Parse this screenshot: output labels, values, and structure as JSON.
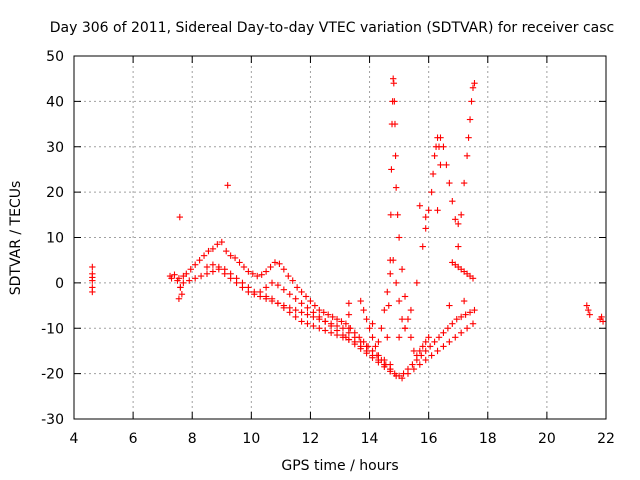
{
  "colors": {
    "series": "#ff0000",
    "grid": "#a0a0a0",
    "axis": "#000000",
    "background": "#ffffff"
  },
  "chart_data": {
    "type": "scatter",
    "title": "Day 306 of 2011, Sidereal Day-to-day VTEC variation (SDTVAR) for receiver casc",
    "xlabel": "GPS time / hours",
    "ylabel": "SDTVAR / TECUs",
    "xlim": [
      4,
      22
    ],
    "ylim": [
      -30,
      50
    ],
    "xticks": [
      4,
      6,
      8,
      10,
      12,
      14,
      16,
      18,
      20,
      22
    ],
    "yticks": [
      -30,
      -20,
      -10,
      0,
      10,
      20,
      30,
      40,
      50
    ],
    "xtick_labels": [
      "4",
      "6",
      "8",
      "10",
      "12",
      "14",
      "16",
      "18",
      "20",
      "22"
    ],
    "ytick_labels": [
      "-30",
      "-20",
      "-10",
      "0",
      "10",
      "20",
      "30",
      "40",
      "50"
    ],
    "grid": true,
    "marker": "+",
    "series": [
      {
        "name": "SDTVAR",
        "color": "#ff0000",
        "x": [
          4.62,
          4.62,
          4.62,
          4.62,
          4.62,
          4.62,
          7.25,
          7.4,
          7.55,
          7.6,
          7.65,
          7.7,
          7.8,
          7.95,
          8.1,
          8.25,
          8.4,
          8.55,
          8.7,
          8.85,
          9.0,
          9.15,
          9.3,
          9.45,
          9.6,
          9.75,
          9.9,
          10.05,
          10.2,
          10.35,
          10.5,
          10.65,
          10.8,
          10.95,
          11.1,
          11.25,
          11.4,
          11.55,
          11.7,
          11.85,
          12.0,
          12.15,
          12.3,
          12.45,
          12.6,
          12.75,
          12.9,
          13.05,
          13.2,
          13.35,
          13.5,
          13.65,
          13.8,
          13.95,
          14.1,
          14.25,
          14.4,
          14.55,
          14.7,
          14.85,
          15.0,
          15.15,
          15.3,
          15.45,
          15.6,
          15.75,
          15.9,
          16.05,
          16.2,
          16.35,
          16.5,
          16.65,
          16.8,
          16.95,
          17.1,
          17.25,
          17.4,
          17.55,
          7.3,
          7.5,
          7.7,
          7.9,
          8.1,
          8.3,
          8.5,
          8.7,
          8.9,
          9.1,
          9.3,
          9.5,
          9.7,
          9.9,
          10.1,
          10.3,
          10.5,
          10.7,
          10.9,
          11.1,
          11.3,
          11.5,
          11.7,
          11.9,
          12.1,
          12.3,
          12.5,
          12.7,
          12.9,
          13.1,
          13.3,
          13.5,
          13.7,
          13.9,
          14.1,
          14.3,
          14.5,
          14.7,
          14.9,
          15.1,
          15.3,
          15.5,
          15.7,
          15.9,
          16.1,
          16.3,
          16.5,
          16.7,
          16.9,
          17.1,
          17.3,
          17.5,
          8.5,
          8.7,
          8.9,
          9.1,
          9.3,
          9.5,
          9.7,
          9.9,
          10.1,
          10.3,
          10.5,
          10.7,
          10.9,
          11.1,
          11.3,
          11.5,
          11.7,
          11.9,
          12.1,
          12.3,
          12.5,
          12.7,
          12.9,
          13.1,
          13.3,
          13.5,
          13.7,
          13.9,
          14.1,
          14.3,
          14.5,
          14.7,
          10.5,
          10.7,
          10.9,
          11.1,
          11.3,
          11.5,
          11.7,
          11.9,
          12.1,
          12.3,
          12.5,
          12.7,
          12.9,
          13.1,
          13.3,
          13.5,
          13.7,
          13.9,
          14.1,
          14.3,
          14.5,
          14.7,
          14.6,
          14.65,
          14.7,
          14.72,
          14.74,
          14.76,
          14.78,
          14.8,
          14.82,
          14.84,
          14.86,
          14.88,
          14.9,
          14.95,
          15.0,
          15.1,
          15.2,
          15.3,
          15.4,
          15.5,
          15.6,
          15.7,
          15.8,
          15.9,
          16.0,
          13.7,
          13.8,
          13.9,
          14.0,
          14.1,
          14.2,
          14.3,
          14.4,
          14.5,
          14.6,
          14.7,
          14.8,
          14.9,
          15.0,
          15.1,
          15.2,
          15.0,
          15.2,
          15.4,
          15.6,
          15.8,
          15.9,
          16.0,
          16.1,
          16.15,
          16.2,
          16.25,
          16.3,
          16.35,
          16.4,
          16.4,
          16.5,
          16.6,
          16.7,
          16.8,
          16.9,
          17.0,
          17.0,
          17.1,
          17.2,
          17.3,
          17.35,
          17.4,
          17.45,
          17.5,
          17.55,
          16.8,
          16.9,
          17.0,
          17.1,
          17.2,
          17.3,
          17.4,
          17.5,
          13.3,
          13.3,
          13.3,
          13.2,
          14.1,
          15.7,
          16.3,
          16.7,
          17.2,
          15.9,
          9.2,
          7.58,
          7.6,
          7.55,
          21.35,
          21.4,
          21.45,
          21.8,
          21.85,
          21.9
        ],
        "y": [
          3.5,
          2.0,
          0.5,
          -1.0,
          -2.0,
          1.2,
          1.5,
          1.8,
          1.0,
          -1.0,
          -2.5,
          1.5,
          2.0,
          3.0,
          4.0,
          5.0,
          6.0,
          7.0,
          7.5,
          8.5,
          9.0,
          7.0,
          6.0,
          5.5,
          4.5,
          3.5,
          2.5,
          2.0,
          1.5,
          1.8,
          2.5,
          3.5,
          4.5,
          4.2,
          3.0,
          1.5,
          0.5,
          -1.0,
          -2.0,
          -3.0,
          -4.0,
          -5.0,
          -6.0,
          -6.5,
          -7.0,
          -7.5,
          -8.0,
          -8.5,
          -9.0,
          -10.0,
          -11.0,
          -12.0,
          -13.0,
          -14.0,
          -15.0,
          -16.0,
          -17.0,
          -18.0,
          -19.0,
          -20.0,
          -20.5,
          -20.0,
          -19.0,
          -18.0,
          -17.0,
          -16.0,
          -15.0,
          -14.0,
          -13.0,
          -12.0,
          -11.0,
          -10.0,
          -9.0,
          -8.0,
          -7.5,
          -7.0,
          -6.5,
          -6.0,
          1.0,
          0.5,
          0.0,
          0.5,
          1.0,
          1.5,
          2.0,
          2.5,
          3.0,
          2.0,
          1.0,
          0.0,
          -1.0,
          -2.0,
          -2.5,
          -2.0,
          -1.0,
          0.0,
          -0.5,
          -1.5,
          -2.5,
          -3.5,
          -4.5,
          -5.5,
          -6.5,
          -7.5,
          -8.5,
          -9.5,
          -10.5,
          -11.5,
          -12.5,
          -13.5,
          -14.5,
          -15.5,
          -16.5,
          -17.5,
          -18.5,
          -19.5,
          -20.5,
          -21.0,
          -20.0,
          -19.0,
          -18.0,
          -17.0,
          -16.0,
          -15.0,
          -14.0,
          -13.0,
          -12.0,
          -11.0,
          -10.0,
          -9.0,
          3.5,
          4.0,
          3.5,
          3.0,
          2.0,
          1.0,
          0.0,
          -1.0,
          -2.0,
          -3.0,
          -3.5,
          -4.0,
          -4.5,
          -5.0,
          -5.5,
          -6.0,
          -6.5,
          -7.0,
          -7.5,
          -8.0,
          -8.5,
          -9.0,
          -9.5,
          -10.0,
          -11.0,
          -12.0,
          -13.0,
          -14.0,
          -15.0,
          -16.0,
          -17.0,
          -18.0,
          -3.0,
          -3.5,
          -4.5,
          -5.5,
          -6.5,
          -7.5,
          -8.5,
          -9.0,
          -9.5,
          -10.0,
          -10.5,
          -11.0,
          -11.5,
          -12.0,
          -12.5,
          -13.0,
          -14.0,
          -15.0,
          -16.0,
          -17.0,
          -18.0,
          -19.0,
          -12.0,
          -5.0,
          5.0,
          15.0,
          25.0,
          35.0,
          40.0,
          45.0,
          44.0,
          40.0,
          35.0,
          28.0,
          21.0,
          15.0,
          10.0,
          3.0,
          -3.0,
          -8.0,
          -12.0,
          -15.0,
          -16.0,
          -15.0,
          -14.0,
          -13.0,
          -12.0,
          -4.0,
          -6.0,
          -8.0,
          -10.0,
          -12.0,
          -14.0,
          -13.0,
          -10.0,
          -6.0,
          -2.0,
          2.0,
          5.0,
          0.0,
          -4.0,
          -8.0,
          -10.0,
          -12.0,
          -10.0,
          -6.0,
          0.0,
          8.0,
          12.0,
          16.0,
          20.0,
          24.0,
          28.0,
          30.0,
          32.0,
          30.0,
          26.0,
          32.0,
          30.0,
          26.0,
          22.0,
          18.0,
          14.0,
          13.0,
          8.0,
          15.0,
          22.0,
          28.0,
          32.0,
          36.0,
          40.0,
          43.0,
          44.0,
          4.5,
          4.0,
          3.5,
          3.0,
          2.5,
          2.0,
          1.5,
          1.0,
          -4.5,
          -7.0,
          -10.0,
          -12.0,
          -9.0,
          17.0,
          16.0,
          -5.0,
          -4.0,
          14.5,
          21.5,
          14.5,
          -1.0,
          -3.5,
          -5.0,
          -6.0,
          -7.0,
          -8.0,
          -7.5,
          -8.5
        ]
      }
    ]
  }
}
